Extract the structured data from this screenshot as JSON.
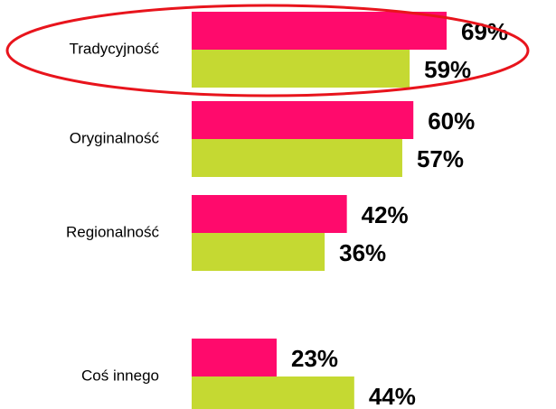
{
  "chart_data": {
    "type": "bar",
    "orientation": "horizontal",
    "categories": [
      "Tradycyjność",
      "Oryginalność",
      "Regionalność",
      null,
      "Coś innego"
    ],
    "series": [
      {
        "color": "#ff0a6c",
        "values": [
          69,
          60,
          42,
          null,
          23
        ],
        "value_labels": [
          "69%",
          "60%",
          "42%",
          null,
          "23%"
        ]
      },
      {
        "color": "#c5d932",
        "values": [
          59,
          57,
          36,
          null,
          44
        ],
        "value_labels": [
          "59%",
          "57%",
          "36%",
          null,
          "44%"
        ]
      }
    ],
    "highlight_color": "#e8141c"
  }
}
